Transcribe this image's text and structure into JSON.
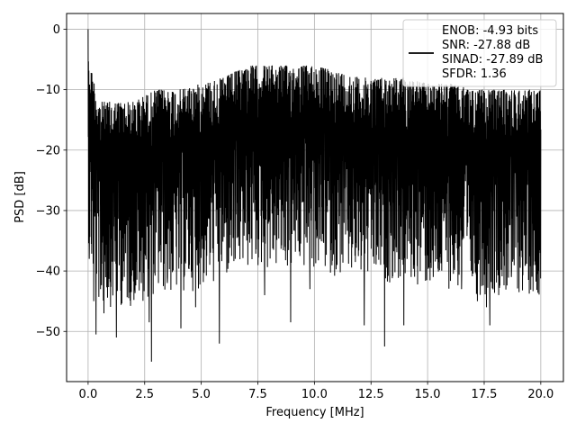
{
  "chart_data": {
    "type": "line",
    "title": "",
    "xlabel": "Frequency [MHz]",
    "ylabel": "PSD [dB]",
    "xlim": [
      -0.95,
      21.0
    ],
    "ylim": [
      -58.3,
      2.6
    ],
    "xticks": [
      0.0,
      2.5,
      5.0,
      7.5,
      10.0,
      12.5,
      15.0,
      17.5,
      20.0
    ],
    "xtick_labels": [
      "0.0",
      "2.5",
      "5.0",
      "7.5",
      "10.0",
      "12.5",
      "15.0",
      "17.5",
      "20.0"
    ],
    "yticks": [
      0,
      -10,
      -20,
      -30,
      -40,
      -50
    ],
    "ytick_labels": [
      "0",
      "−10",
      "−20",
      "−30",
      "−40",
      "−50"
    ],
    "grid": true,
    "line_color": "#000000",
    "legend_position": "top-right",
    "legend_lines": [
      "ENOB: -4.93 bits",
      "SNR: -27.88 dB",
      "SINAD: -27.89 dB",
      "SFDR: 1.36"
    ],
    "series": [
      {
        "description": "dense noise-like PSD trace spanning 0–20 MHz",
        "upper_envelope": {
          "x": [
            0.0,
            0.1,
            0.5,
            1.0,
            2.0,
            3.0,
            4.0,
            5.0,
            6.0,
            7.0,
            8.0,
            9.0,
            10.0,
            11.0,
            12.0,
            13.0,
            14.0,
            15.0,
            16.0,
            17.0,
            18.0,
            19.0,
            20.0
          ],
          "y": [
            0,
            -6,
            -12,
            -12,
            -12,
            -10,
            -10,
            -9,
            -8,
            -6,
            -6,
            -6,
            -6,
            -7,
            -8,
            -8,
            -8,
            -9,
            -9,
            -10,
            -10,
            -10,
            -10
          ]
        },
        "deep_dips": [
          {
            "x": 0.05,
            "y": -38
          },
          {
            "x": 0.25,
            "y": -45
          },
          {
            "x": 0.35,
            "y": -50.5
          },
          {
            "x": 0.55,
            "y": -43
          },
          {
            "x": 0.7,
            "y": -47
          },
          {
            "x": 1.25,
            "y": -51
          },
          {
            "x": 1.6,
            "y": -41
          },
          {
            "x": 2.35,
            "y": -42
          },
          {
            "x": 2.7,
            "y": -48.5
          },
          {
            "x": 2.8,
            "y": -55
          },
          {
            "x": 3.5,
            "y": -42
          },
          {
            "x": 4.1,
            "y": -49.5
          },
          {
            "x": 4.75,
            "y": -46
          },
          {
            "x": 5.8,
            "y": -52
          },
          {
            "x": 6.5,
            "y": -38
          },
          {
            "x": 7.8,
            "y": -44
          },
          {
            "x": 8.95,
            "y": -48.5
          },
          {
            "x": 9.8,
            "y": -43
          },
          {
            "x": 11.0,
            "y": -39
          },
          {
            "x": 12.2,
            "y": -49
          },
          {
            "x": 13.1,
            "y": -52.5
          },
          {
            "x": 13.95,
            "y": -49
          },
          {
            "x": 15.25,
            "y": -41
          },
          {
            "x": 16.5,
            "y": -43
          },
          {
            "x": 17.2,
            "y": -45
          },
          {
            "x": 17.6,
            "y": -46
          },
          {
            "x": 17.75,
            "y": -49
          },
          {
            "x": 18.7,
            "y": -41
          },
          {
            "x": 19.9,
            "y": -40
          }
        ]
      }
    ]
  }
}
